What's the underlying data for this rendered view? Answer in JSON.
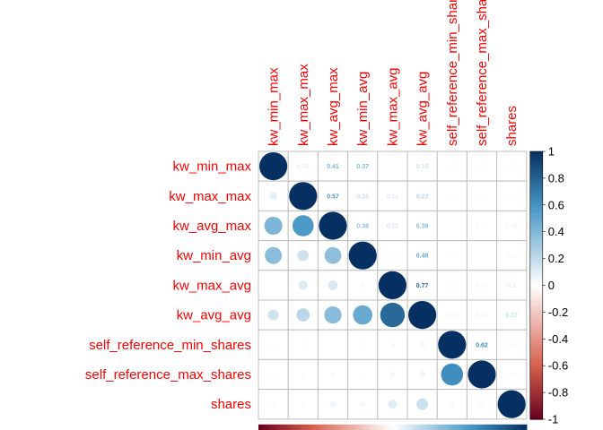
{
  "chart_data": {
    "type": "heatmap",
    "style": "corrplot mixed (lower: circles, upper: coefficients)",
    "variables": [
      "kw_min_max",
      "kw_max_max",
      "kw_avg_max",
      "kw_min_avg",
      "kw_max_avg",
      "kw_avg_avg",
      "self_reference_min_shares",
      "self_reference_max_shares",
      "shares"
    ],
    "matrix": [
      [
        1.0,
        0.08,
        0.41,
        0.37,
        0.0,
        0.15,
        0.02,
        0.02,
        0.02
      ],
      [
        0.08,
        1.0,
        0.57,
        0.16,
        0.11,
        0.22,
        0.02,
        0.02,
        0.02
      ],
      [
        0.41,
        0.57,
        1.0,
        0.36,
        0.12,
        0.38,
        0.01,
        0.03,
        0.05
      ],
      [
        0.37,
        0.16,
        0.36,
        1.0,
        0.03,
        0.48,
        0.02,
        0.01,
        0.04
      ],
      [
        0.0,
        0.11,
        0.12,
        0.03,
        1.0,
        0.77,
        0.03,
        0.04,
        0.1
      ],
      [
        0.15,
        0.22,
        0.38,
        0.48,
        0.77,
        1.0,
        0.04,
        0.05,
        0.17
      ],
      [
        0.02,
        0.02,
        0.01,
        0.02,
        0.03,
        0.04,
        1.0,
        0.62,
        0.03
      ],
      [
        0.02,
        0.02,
        0.03,
        0.01,
        0.04,
        0.05,
        0.62,
        1.0,
        0.03
      ],
      [
        0.02,
        0.02,
        0.05,
        0.04,
        0.1,
        0.17,
        0.03,
        0.03,
        1.0
      ]
    ],
    "upper_labels": [
      [
        "",
        "0.08",
        "0.41",
        "0.37",
        "",
        "0.15",
        "0.02",
        "0.02",
        "0.02"
      ],
      [
        "",
        "",
        "0.57",
        "0.16",
        "0.11",
        "0.22",
        "0.02",
        "0.02",
        "0.02"
      ],
      [
        "",
        "",
        "",
        "0.36",
        "0.12",
        "0.38",
        "",
        "0.03",
        "0.05"
      ],
      [
        "",
        "",
        "",
        "",
        "0.03",
        "0.48",
        "0.02",
        "",
        "0.04"
      ],
      [
        "",
        "",
        "",
        "",
        "",
        "0.77",
        "0.03",
        "0.04",
        "0.1"
      ],
      [
        "",
        "",
        "",
        "",
        "",
        "",
        "0.04",
        "0.05",
        "0.17"
      ],
      [
        "",
        "",
        "",
        "",
        "",
        "",
        "",
        "0.62",
        "0.03"
      ],
      [
        "",
        "",
        "",
        "",
        "",
        "",
        "",
        "",
        "0.03"
      ],
      [
        "",
        "",
        "",
        "",
        "",
        "",
        "",
        "",
        ""
      ]
    ],
    "colorbar": {
      "range": [
        -1,
        1
      ],
      "ticks": [
        "1",
        "0.8",
        "0.6",
        "0.4",
        "0.2",
        "0",
        "-0.2",
        "-0.4",
        "-0.6",
        "-0.8",
        "-1"
      ]
    },
    "colors": {
      "neg_1": "#67001f",
      "neg_06": "#d6604d",
      "zero": "#ffffff",
      "pos_06": "#4393c3",
      "pos_1": "#053061",
      "label": "#ff0000",
      "grid": "#bebebe"
    }
  }
}
